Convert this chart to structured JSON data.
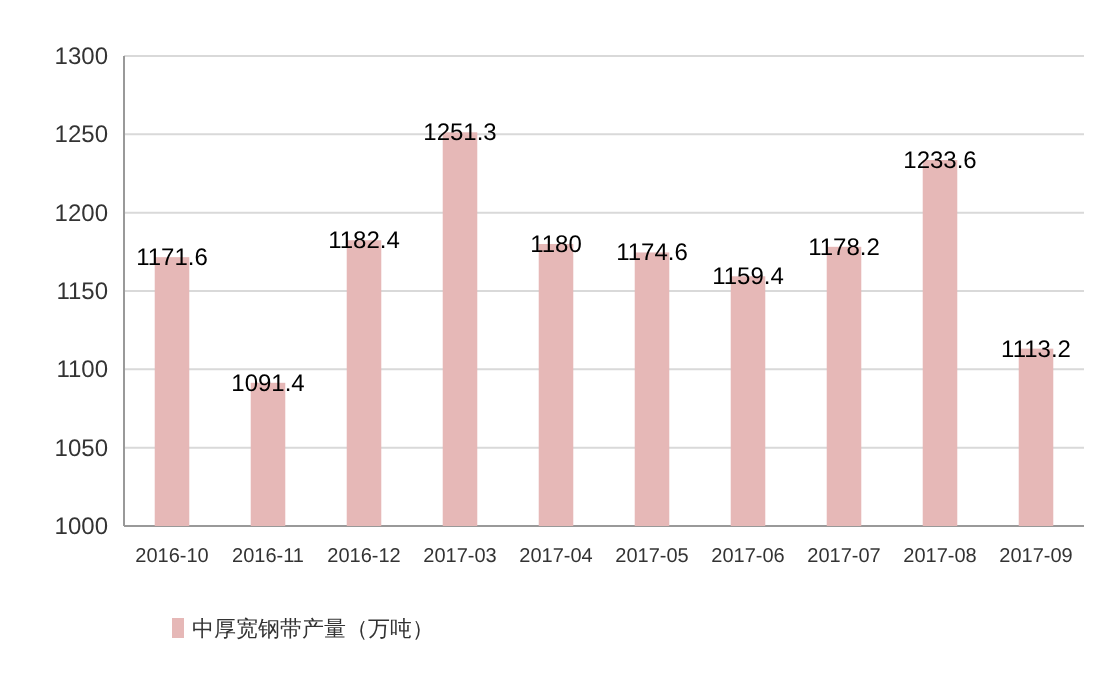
{
  "chart_data": {
    "type": "bar",
    "categories": [
      "2016-10",
      "2016-11",
      "2016-12",
      "2017-03",
      "2017-04",
      "2017-05",
      "2017-06",
      "2017-07",
      "2017-08",
      "2017-09"
    ],
    "series": [
      {
        "name": "中厚宽钢带产量（万吨）",
        "color": "#e6b8b7",
        "values": [
          1171.6,
          1091.4,
          1182.4,
          1251.3,
          1180,
          1174.6,
          1159.4,
          1178.2,
          1233.6,
          1113.2
        ]
      }
    ],
    "ylim": [
      1000,
      1300
    ],
    "yticks": [
      1000,
      1050,
      1100,
      1150,
      1200,
      1250,
      1300
    ],
    "data_labels": true,
    "grid": "y",
    "legend": "bottom left"
  }
}
